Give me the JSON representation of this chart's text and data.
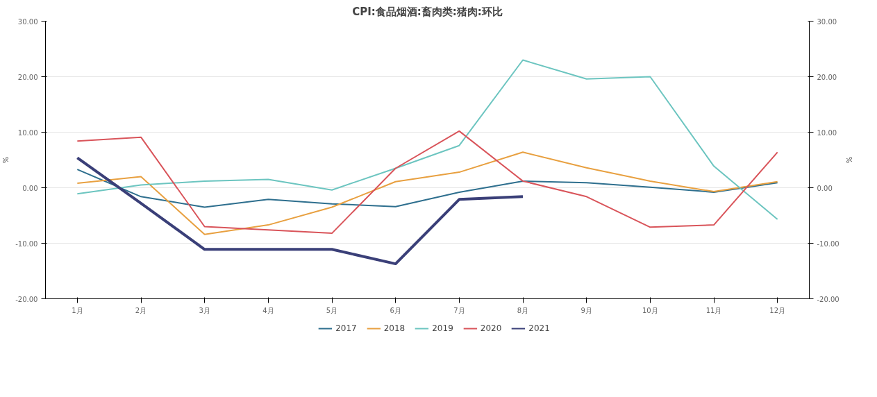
{
  "chart_data": {
    "type": "line",
    "title": "CPI:食品烟酒:畜肉类:猪肉:环比",
    "ylabel": "%",
    "y2label": "%",
    "categories": [
      "1月",
      "2月",
      "3月",
      "4月",
      "5月",
      "6月",
      "7月",
      "8月",
      "9月",
      "10月",
      "11月",
      "12月"
    ],
    "series": [
      {
        "name": "2017",
        "color": "#2e6f8e",
        "values": [
          3.3,
          -1.6,
          -3.5,
          -2.1,
          -2.9,
          -3.4,
          -0.8,
          1.2,
          0.9,
          0.1,
          -0.8,
          0.9
        ]
      },
      {
        "name": "2018",
        "color": "#e8a040",
        "values": [
          0.8,
          2.0,
          -8.4,
          -6.7,
          -3.5,
          1.1,
          2.8,
          6.4,
          3.6,
          1.2,
          -0.7,
          1.1
        ]
      },
      {
        "name": "2019",
        "color": "#6cc5c0",
        "values": [
          -1.1,
          0.5,
          1.2,
          1.5,
          -0.4,
          3.5,
          7.6,
          23.0,
          19.6,
          20.0,
          3.9,
          -5.7
        ]
      },
      {
        "name": "2020",
        "color": "#d9545a",
        "values": [
          8.4,
          9.1,
          -7.0,
          -7.6,
          -8.2,
          3.5,
          10.2,
          1.2,
          -1.6,
          -7.1,
          -6.7,
          6.4
        ]
      },
      {
        "name": "2021",
        "color": "#3a3f78",
        "values": [
          5.4,
          -2.8,
          -11.1,
          -11.1,
          -11.1,
          -13.7,
          -2.1,
          -1.6,
          null,
          null,
          null,
          null
        ]
      }
    ],
    "ylim": [
      -20,
      30
    ],
    "yticks": [
      {
        "value": -20,
        "label": "-20.00"
      },
      {
        "value": -10,
        "label": "-10.00"
      },
      {
        "value": 0,
        "label": "0.00"
      },
      {
        "value": 10,
        "label": "10.00"
      },
      {
        "value": 20,
        "label": "20.00"
      },
      {
        "value": 30,
        "label": "30.00"
      }
    ],
    "y2lim": [
      -20,
      30
    ],
    "y2ticks": [
      {
        "value": -20,
        "label": "-20.00"
      },
      {
        "value": -10,
        "label": "-10.00"
      },
      {
        "value": 0,
        "label": "0.00"
      },
      {
        "value": 10,
        "label": "10.00"
      },
      {
        "value": 20,
        "label": "20.00"
      },
      {
        "value": 30,
        "label": "30.00"
      }
    ],
    "grid": "y",
    "legend": "bottom",
    "line_style": "solid"
  }
}
